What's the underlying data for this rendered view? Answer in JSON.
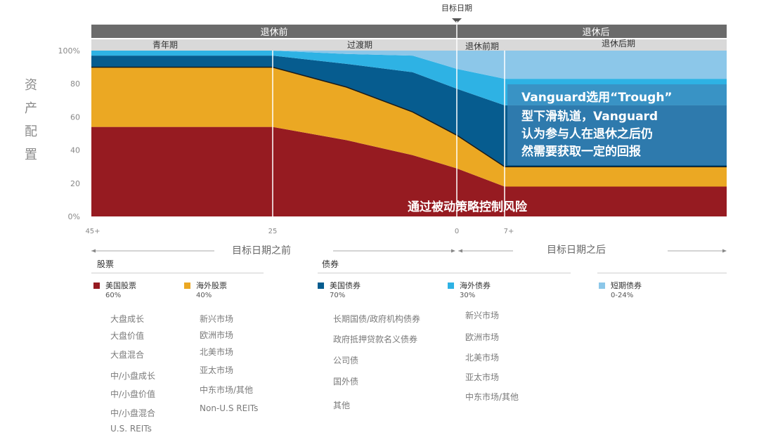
{
  "colors": {
    "us_equity": "#961b21",
    "intl_equity": "#eba823",
    "us_bond": "#065c8f",
    "intl_bond": "#2eb2e4",
    "short_bond": "#8cc7e9",
    "band_dark": "#6b6b6b",
    "band_light": "#d9d9d9",
    "annotation_box": "#3e86b9"
  },
  "target_date_label": "目标日期",
  "bands": {
    "top": [
      "退休前",
      "退休后"
    ],
    "phases": [
      "青年期",
      "过渡期",
      "退休前期",
      "退休后期"
    ]
  },
  "chart_data": {
    "type": "area",
    "stacked": true,
    "x_is_years_to_target": true,
    "x": [
      45,
      25,
      15,
      6,
      0,
      -7,
      -25
    ],
    "x_tick_labels": [
      "45+",
      "25",
      "0",
      "7+"
    ],
    "y_tick_labels": [
      "100%",
      "80",
      "60",
      "40",
      "20",
      "0%"
    ],
    "ylim": [
      0,
      100
    ],
    "ylabel": "资产配置",
    "series": [
      {
        "name": "美国股票",
        "color_key": "us_equity",
        "values": [
          54,
          54,
          46,
          37,
          29,
          18,
          18
        ]
      },
      {
        "name": "海外股票",
        "color_key": "intl_equity",
        "values": [
          36,
          36,
          32,
          26,
          20,
          12,
          12
        ]
      },
      {
        "name": "美国债券",
        "color_key": "us_bond",
        "values": [
          7,
          7,
          14,
          24,
          28,
          37,
          37
        ]
      },
      {
        "name": "海外债券",
        "color_key": "intl_bond",
        "values": [
          3,
          3,
          6,
          10,
          12,
          16,
          16
        ]
      },
      {
        "name": "短期债券",
        "color_key": "short_bond",
        "values": [
          0,
          0,
          2,
          3,
          11,
          17,
          17
        ]
      }
    ],
    "annotations": {
      "box_text": [
        "Vanguard选用“Trough”",
        "型下滑轨道，Vanguard",
        "认为参与人在退休之后仍",
        "然需要获取一定的回报"
      ],
      "bottom_text": "通过被动策略控制风险"
    },
    "axis_captions": {
      "before": "目标日期之前",
      "after": "目标日期之后"
    }
  },
  "legend": {
    "groups": [
      {
        "title": "股票",
        "items": [
          {
            "name": "美国股票",
            "pct": "60%",
            "color_key": "us_equity",
            "subs": [
              "大盘成长",
              "大盘价值",
              "大盘混合",
              "中/小盘成长",
              "中/小盘价值",
              "中/小盘混合",
              "U.S. REITs"
            ]
          },
          {
            "name": "海外股票",
            "pct": "40%",
            "color_key": "intl_equity",
            "subs": [
              "新兴市场",
              "欧洲市场",
              "北美市场",
              "亚太市场",
              "中东市场/其他",
              "Non-U.S REITs"
            ]
          }
        ]
      },
      {
        "title": "债券",
        "items": [
          {
            "name": "美国债券",
            "pct": "70%",
            "color_key": "us_bond",
            "subs": [
              "长期国债/政府机构债券",
              "政府抵押贷款名义债券",
              "公司债",
              "国外债",
              "其他"
            ]
          },
          {
            "name": "海外债券",
            "pct": "30%",
            "color_key": "intl_bond",
            "subs": [
              "新兴市场",
              "欧洲市场",
              "北美市场",
              "亚太市场",
              "中东市场/其他"
            ]
          }
        ]
      },
      {
        "title": "",
        "items": [
          {
            "name": "短期债券",
            "pct": "0-24%",
            "color_key": "short_bond",
            "subs": []
          }
        ]
      }
    ]
  }
}
